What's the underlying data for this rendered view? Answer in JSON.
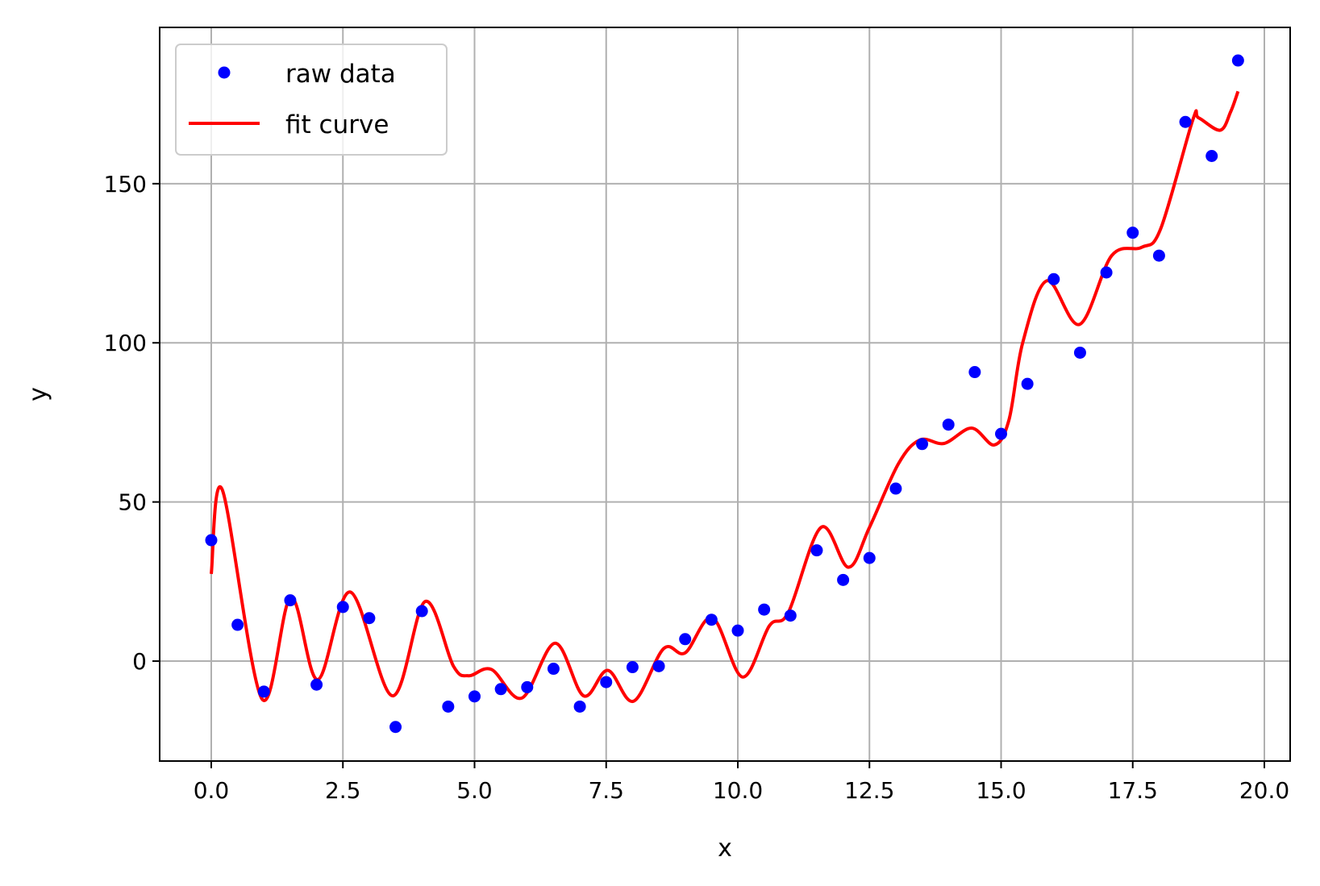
{
  "chart_data": {
    "type": "scatter+line",
    "title": "",
    "xlabel": "x",
    "ylabel": "y",
    "xlim": [
      -0.98,
      20.49
    ],
    "ylim": [
      -31.4,
      199.1
    ],
    "xticks": [
      0,
      2.5,
      5,
      7.5,
      10,
      12.5,
      15,
      17.5,
      20
    ],
    "xtick_labels": [
      "0.0",
      "2.5",
      "5.0",
      "7.5",
      "10.0",
      "12.5",
      "15.0",
      "17.5",
      "20.0"
    ],
    "yticks": [
      0,
      50,
      100,
      150
    ],
    "ytick_labels": [
      "0",
      "50",
      "100",
      "150"
    ],
    "grid": true,
    "legend_placement": "upper-left",
    "series": [
      {
        "name": "raw data",
        "kind": "scatter",
        "color": "#0000ff",
        "x": [
          0,
          0.5,
          1,
          1.5,
          2,
          2.5,
          3,
          3.5,
          4,
          4.5,
          5,
          5.5,
          6,
          6.5,
          7,
          7.5,
          8,
          8.5,
          9,
          9.5,
          10,
          10.5,
          11,
          11.5,
          12,
          12.5,
          13,
          13.5,
          14,
          14.5,
          15,
          15.5,
          16,
          16.5,
          17,
          17.5,
          18,
          18.5,
          19,
          19.5
        ],
        "y": [
          38,
          11.4,
          -9.6,
          19.1,
          -7.4,
          17,
          13.5,
          -20.7,
          15.7,
          -14.3,
          -11.1,
          -8.8,
          -8.2,
          -2.4,
          -14.3,
          -6.6,
          -1.9,
          -1.6,
          6.9,
          13,
          9.6,
          16.2,
          14.3,
          34.8,
          25.5,
          32.4,
          54.2,
          68.2,
          74.3,
          90.8,
          71.4,
          87.1,
          120,
          96.9,
          122.1,
          134.6,
          127.4,
          169.4,
          158.7,
          188.7
        ]
      },
      {
        "name": "fit curve",
        "kind": "line",
        "color": "#ff0000",
        "x": [
          0,
          0.21,
          0.96,
          1.51,
          2.02,
          2.64,
          3.44,
          4.06,
          4.6,
          4.89,
          5.32,
          5.9,
          6.53,
          7.07,
          7.53,
          8.02,
          8.59,
          9.0,
          9.52,
          10.09,
          10.6,
          10.96,
          11.58,
          12.1,
          12.5,
          13.05,
          13.46,
          13.92,
          14.44,
          14.87,
          15.15,
          15.41,
          15.87,
          16.49,
          17.1,
          17.67,
          18.03,
          18.64,
          18.75,
          19.16,
          19.36,
          19.5
        ],
        "y": [
          27.4,
          53.8,
          -11.8,
          20,
          -5.8,
          21.7,
          -10.9,
          18.7,
          -1.6,
          -4.6,
          -2.6,
          -11.6,
          5.6,
          -10.9,
          -2.9,
          -12.6,
          3.9,
          2.6,
          13.6,
          -5,
          11.1,
          15.3,
          42,
          29.5,
          42,
          62,
          69.5,
          68.4,
          73.2,
          67.9,
          75.8,
          100,
          119.5,
          105.8,
          127.4,
          130,
          135.8,
          170,
          170.7,
          166.8,
          172.6,
          179
        ]
      }
    ]
  }
}
